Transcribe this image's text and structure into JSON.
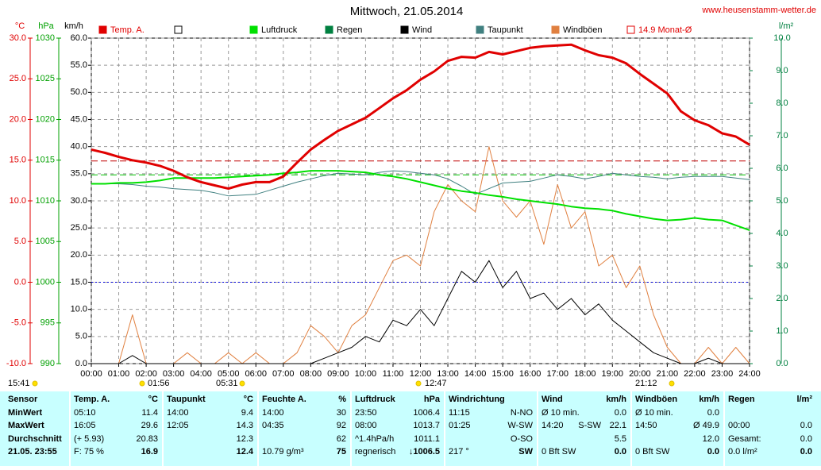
{
  "chart_data": {
    "type": "line",
    "title": "Mittwoch, 21.05.2014",
    "source": "www.heusenstamm-wetter.de",
    "x": [
      0,
      0.5,
      1,
      1.5,
      2,
      2.5,
      3,
      3.5,
      4,
      4.5,
      5,
      5.5,
      6,
      6.5,
      7,
      7.5,
      8,
      8.5,
      9,
      9.5,
      10,
      10.5,
      11,
      11.5,
      12,
      12.5,
      13,
      13.5,
      14,
      14.5,
      15,
      15.5,
      16,
      16.5,
      17,
      17.5,
      18,
      18.5,
      19,
      19.5,
      20,
      20.5,
      21,
      21.5,
      22,
      22.5,
      23,
      23.5,
      24
    ],
    "xlim": [
      0,
      24
    ],
    "xticks": [
      {
        "value": 0,
        "label": "00:00"
      },
      {
        "value": 1,
        "label": "01:00"
      },
      {
        "value": 2,
        "label": "02:00"
      },
      {
        "value": 3,
        "label": "03:00"
      },
      {
        "value": 4,
        "label": "04:00"
      },
      {
        "value": 5,
        "label": "05:00"
      },
      {
        "value": 6,
        "label": "06:00"
      },
      {
        "value": 7,
        "label": "07:00"
      },
      {
        "value": 8,
        "label": "08:00"
      },
      {
        "value": 9,
        "label": "09:00"
      },
      {
        "value": 10,
        "label": "10:00"
      },
      {
        "value": 11,
        "label": "11:00"
      },
      {
        "value": 12,
        "label": "12:00"
      },
      {
        "value": 13,
        "label": "13:00"
      },
      {
        "value": 14,
        "label": "14:00"
      },
      {
        "value": 15,
        "label": "15:00"
      },
      {
        "value": 16,
        "label": "16:00"
      },
      {
        "value": 17,
        "label": "17:00"
      },
      {
        "value": 18,
        "label": "18:00"
      },
      {
        "value": 19,
        "label": "19:00"
      },
      {
        "value": 20,
        "label": "20:00"
      },
      {
        "value": 21,
        "label": "21:00"
      },
      {
        "value": 22,
        "label": "22:00"
      },
      {
        "value": 23,
        "label": "23:00"
      },
      {
        "value": 24,
        "label": "24:00"
      }
    ],
    "ylabel": "km/h",
    "ylim": [
      0,
      60
    ],
    "yticks": [
      {
        "value": 0,
        "label": "0.0"
      },
      {
        "value": 5,
        "label": "5.0"
      },
      {
        "value": 10,
        "label": "10.0"
      },
      {
        "value": 15,
        "label": "15.0"
      },
      {
        "value": 20,
        "label": "20.0"
      },
      {
        "value": 25,
        "label": "25.0"
      },
      {
        "value": 30,
        "label": "30.0"
      },
      {
        "value": 35,
        "label": "35.0"
      },
      {
        "value": 40,
        "label": "40.0"
      },
      {
        "value": 45,
        "label": "45.0"
      },
      {
        "value": 50,
        "label": "50.0"
      },
      {
        "value": 55,
        "label": "55.0"
      },
      {
        "value": 60,
        "label": "60.0"
      }
    ],
    "y2label": "l/m²",
    "y2lim": [
      0,
      10
    ],
    "y2ticks": [
      {
        "value": 0,
        "label": "0.0"
      },
      {
        "value": 1,
        "label": "1.0"
      },
      {
        "value": 2,
        "label": "2.0"
      },
      {
        "value": 3,
        "label": "3.0"
      },
      {
        "value": 4,
        "label": "4.0"
      },
      {
        "value": 5,
        "label": "5.0"
      },
      {
        "value": 6,
        "label": "6.0"
      },
      {
        "value": 7,
        "label": "7.0"
      },
      {
        "value": 8,
        "label": "8.0"
      },
      {
        "value": 9,
        "label": "9.0"
      },
      {
        "value": 10,
        "label": "10.0"
      }
    ],
    "axes": {
      "temp": {
        "label": "°C",
        "color": "#e00000",
        "lim": [
          -10,
          30
        ],
        "ticks": [
          {
            "value": -10,
            "label": "-10.0"
          },
          {
            "value": -5,
            "label": "-5.0"
          },
          {
            "value": 0,
            "label": "0.0"
          },
          {
            "value": 5,
            "label": "5.0"
          },
          {
            "value": 10,
            "label": "10.0"
          },
          {
            "value": 15,
            "label": "15.0"
          },
          {
            "value": 20,
            "label": "20.0"
          },
          {
            "value": 25,
            "label": "25.0"
          },
          {
            "value": 30,
            "label": "30.0"
          }
        ]
      },
      "pressure": {
        "label": "hPa",
        "color": "#00a000",
        "lim": [
          990,
          1030
        ],
        "ticks": [
          990,
          995,
          1000,
          1005,
          1010,
          1015,
          1020,
          1025,
          1030
        ]
      }
    },
    "grid": true,
    "legend": [
      {
        "name": "Temp. A.",
        "color": "#e00000",
        "style": "fill"
      },
      {
        "color": "#ffffff",
        "style": "box"
      },
      {
        "name": "Luftdruck",
        "color": "#00e000",
        "style": "fill"
      },
      {
        "name": "Regen",
        "color": "#008040",
        "style": "fill"
      },
      {
        "name": "Wind",
        "color": "#000000",
        "style": "fill"
      },
      {
        "name": "Taupunkt",
        "color": "#408080",
        "style": "fill"
      },
      {
        "name": "Windböen",
        "color": "#e08040",
        "style": "fill"
      },
      {
        "name": "14.9 Monat-Ø",
        "color": "#e00000",
        "style": "outline"
      }
    ],
    "reference_lines": [
      {
        "value": 14.9,
        "axis": "temp",
        "color": "#c00000",
        "dash": "8,4"
      },
      {
        "value": 1013.2,
        "axis": "pressure",
        "color": "#00c000",
        "dash": "8,4"
      },
      {
        "value": 0,
        "axis": "temp",
        "color": "#0000e0",
        "dash": "2,3"
      }
    ],
    "series": [
      {
        "name": "Windböen",
        "color": "#e08040",
        "width": 1,
        "axis": "y",
        "values": [
          0,
          0,
          0,
          9,
          0,
          0,
          0,
          2,
          0,
          0,
          2,
          0,
          2,
          0,
          0,
          2,
          7,
          5,
          2,
          7,
          9,
          14,
          19,
          20,
          18,
          28,
          33,
          30,
          28,
          40,
          30,
          27,
          30,
          22,
          33,
          25,
          28,
          18,
          20,
          14,
          18,
          9,
          3,
          0,
          0,
          3,
          0,
          3,
          0
        ]
      },
      {
        "name": "Wind",
        "color": "#000000",
        "width": 1,
        "axis": "y",
        "values": [
          0,
          0,
          0,
          1.5,
          0,
          0,
          0,
          0,
          0,
          0,
          0,
          0,
          0,
          0,
          0,
          0,
          0,
          1,
          2,
          3,
          5,
          4,
          8,
          7,
          10,
          7,
          12,
          17,
          15,
          19,
          14,
          17,
          12,
          13,
          10,
          12,
          9,
          11,
          8,
          6,
          4,
          2,
          1,
          0,
          0,
          1,
          0,
          0,
          0
        ]
      },
      {
        "name": "Taupunkt",
        "color": "#408080",
        "width": 1,
        "axis": "temp",
        "values": [
          12.1,
          12.1,
          12.1,
          12.0,
          11.8,
          11.7,
          11.5,
          11.4,
          11.3,
          11.0,
          10.6,
          10.7,
          10.8,
          11.3,
          11.8,
          12.3,
          12.7,
          13.1,
          13.4,
          13.3,
          13.2,
          13.5,
          13.7,
          13.6,
          13.4,
          13.2,
          12.7,
          11.8,
          10.8,
          11.5,
          12.2,
          12.3,
          12.4,
          12.8,
          13.2,
          13.0,
          12.7,
          13.0,
          13.4,
          13.2,
          13.0,
          12.9,
          12.7,
          12.9,
          13.0,
          13.0,
          13.0,
          12.8,
          12.6
        ]
      },
      {
        "name": "Luftdruck",
        "color": "#00e000",
        "width": 2,
        "axis": "pressure",
        "values": [
          1012.1,
          1012.1,
          1012.2,
          1012.2,
          1012.3,
          1012.5,
          1012.8,
          1012.8,
          1012.8,
          1012.8,
          1012.9,
          1013.0,
          1013.1,
          1013.2,
          1013.4,
          1013.5,
          1013.7,
          1013.7,
          1013.7,
          1013.6,
          1013.5,
          1013.2,
          1013.0,
          1012.7,
          1012.3,
          1011.9,
          1011.5,
          1011.2,
          1011.0,
          1010.7,
          1010.5,
          1010.2,
          1010.0,
          1009.8,
          1009.6,
          1009.3,
          1009.1,
          1009.0,
          1008.8,
          1008.4,
          1008.1,
          1007.8,
          1007.6,
          1007.7,
          1007.9,
          1007.7,
          1007.6,
          1007.0,
          1006.4
        ]
      },
      {
        "name": "Temp. A.",
        "color": "#e00000",
        "width": 3,
        "axis": "temp",
        "values": [
          16.3,
          15.9,
          15.4,
          15.0,
          14.7,
          14.3,
          13.7,
          12.9,
          12.3,
          11.9,
          11.5,
          12.0,
          12.3,
          12.3,
          13.0,
          14.7,
          16.3,
          17.5,
          18.6,
          19.4,
          20.2,
          21.4,
          22.6,
          23.6,
          24.9,
          25.9,
          27.2,
          27.7,
          27.6,
          28.3,
          28.0,
          28.4,
          28.8,
          29.0,
          29.1,
          29.2,
          28.5,
          27.9,
          27.6,
          26.9,
          25.6,
          24.4,
          23.2,
          21.0,
          19.9,
          19.3,
          18.3,
          17.9,
          16.9
        ]
      }
    ],
    "markers": [
      "15:41",
      "01:56",
      "05:31",
      "12:47",
      "21:12"
    ]
  },
  "table": {
    "header": [
      [
        "Sensor"
      ],
      [
        "Temp. A.",
        "°C"
      ],
      [
        "Taupunkt",
        "°C"
      ],
      [
        "Feuchte A.",
        "%"
      ],
      [
        "Luftdruck",
        "hPa"
      ],
      [
        "Windrichtung"
      ],
      [
        "Wind",
        "km/h"
      ],
      [
        "Windböen",
        "km/h"
      ],
      [
        "Regen",
        "l/m²"
      ]
    ],
    "rows": [
      [
        [
          "MinWert"
        ],
        [
          "05:10",
          "11.4"
        ],
        [
          "14:00",
          "9.4"
        ],
        [
          "14:00",
          "30"
        ],
        [
          "23:50",
          "1006.4"
        ],
        [
          "11:15",
          "N-NO"
        ],
        [
          "Ø 10 min.",
          "0.0"
        ],
        [
          "Ø 10 min.",
          "0.0"
        ],
        []
      ],
      [
        [
          "MaxWert"
        ],
        [
          "16:05",
          "29.6"
        ],
        [
          "12:05",
          "14.3"
        ],
        [
          "04:35",
          "92"
        ],
        [
          "08:00",
          "1013.7"
        ],
        [
          "01:25",
          "W-SW"
        ],
        [
          "14:20",
          "S-SW",
          "22.1"
        ],
        [
          "14:50",
          "Ø 49.9"
        ],
        [
          "00:00",
          "0.0"
        ]
      ],
      [
        [
          "Durchschnitt"
        ],
        [
          "(+ 5.93)",
          "20.83"
        ],
        [
          "12.3"
        ],
        [
          "62"
        ],
        [
          "^1.4hPa/h",
          "1011.1"
        ],
        [
          "O-SO"
        ],
        [
          "5.5"
        ],
        [
          "12.0"
        ],
        [
          "Gesamt:",
          "0.0"
        ]
      ],
      [
        [
          "21.05. 23:55"
        ],
        [
          "F: 75 %",
          "16.9"
        ],
        [
          "12.4"
        ],
        [
          "10.79 g/m³",
          "75"
        ],
        [
          "regnerisch",
          "↓1006.5"
        ],
        [
          "217 °",
          "SW"
        ],
        [
          "0 Bft SW",
          "0.0"
        ],
        [
          "0 Bft SW",
          "0.0"
        ],
        [
          "0.0 l/m²",
          "0.0"
        ]
      ]
    ]
  }
}
